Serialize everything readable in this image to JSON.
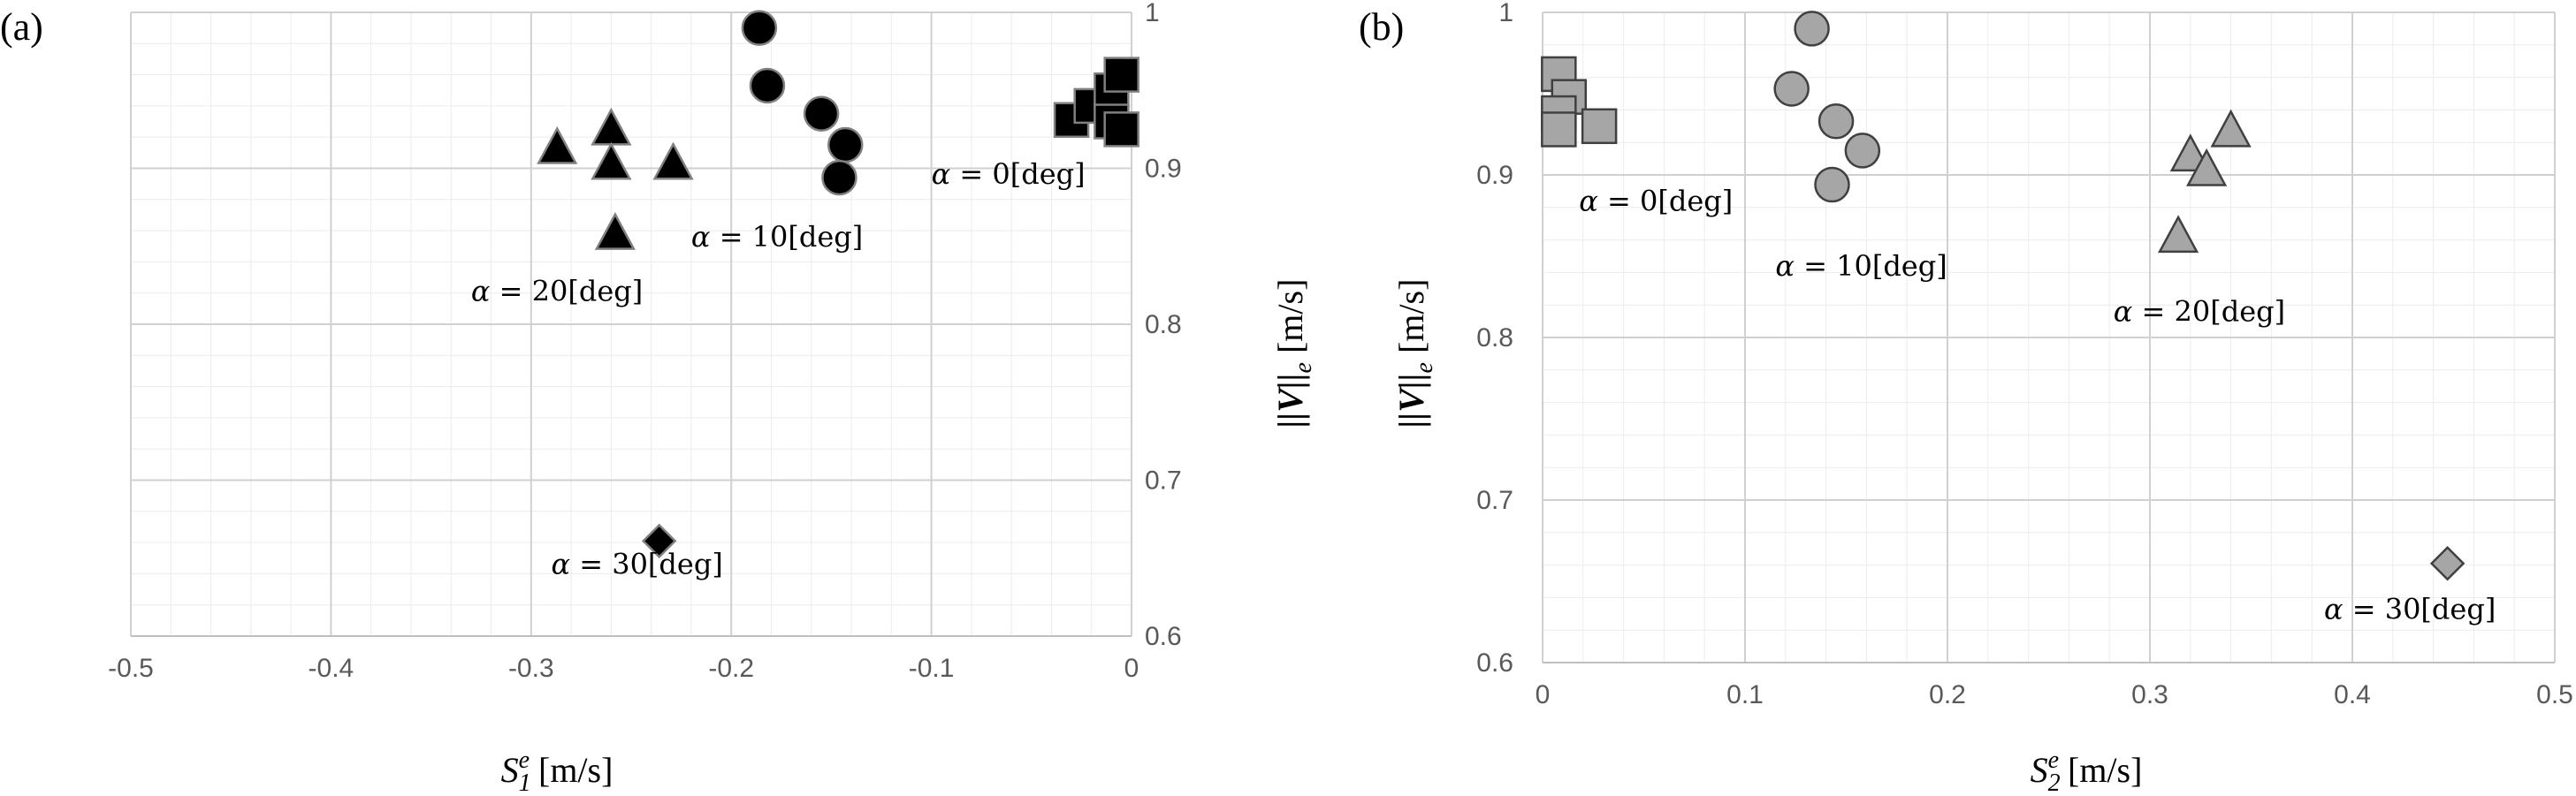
{
  "colors": {
    "background": "#ffffff",
    "grid_major": "#d0d0d0",
    "grid_minor": "#ececec",
    "tick_text": "#595959",
    "panel_a_fill": "#000000",
    "panel_a_stroke": "#808080",
    "panel_b_fill": "#a6a6a6",
    "panel_b_stroke": "#404040"
  },
  "chart_data": [
    {
      "type": "scatter",
      "panel_label": "(a)",
      "xlabel": {
        "main": "S",
        "sub": "1",
        "sup": "e",
        "unit": " [m/s]"
      },
      "ylabel": {
        "main": "||V||",
        "sub": "e",
        "unit": " [m/s]"
      },
      "xlim": [
        -0.5,
        0
      ],
      "ylim": [
        0.6,
        1
      ],
      "xticks": [
        "-0.5",
        "-0.4",
        "-0.3",
        "-0.2",
        "-0.1",
        "0"
      ],
      "yticks": [
        "0.6",
        "0.7",
        "0.8",
        "0.9",
        "1"
      ],
      "grid": true,
      "yaxis_side": "right",
      "series": [
        {
          "marker": "square",
          "points": [
            [
              -0.03,
              0.931
            ],
            [
              -0.02,
              0.94
            ],
            [
              -0.01,
              0.95
            ],
            [
              -0.005,
              0.96
            ],
            [
              -0.01,
              0.93
            ],
            [
              -0.005,
              0.925
            ]
          ]
        },
        {
          "marker": "circle",
          "points": [
            [
              -0.186,
              0.99
            ],
            [
              -0.182,
              0.953
            ],
            [
              -0.155,
              0.935
            ],
            [
              -0.143,
              0.915
            ],
            [
              -0.146,
              0.894
            ]
          ]
        },
        {
          "marker": "triangle",
          "points": [
            [
              -0.287,
              0.913
            ],
            [
              -0.26,
              0.925
            ],
            [
              -0.26,
              0.903
            ],
            [
              -0.229,
              0.903
            ],
            [
              -0.258,
              0.858
            ]
          ]
        },
        {
          "marker": "diamond",
          "points": [
            [
              -0.236,
              0.661
            ]
          ]
        }
      ],
      "annotations": [
        {
          "greek": "α",
          "text": " = 0[deg]",
          "x": -0.1,
          "y": 0.89
        },
        {
          "greek": "α",
          "text": " = 10[deg]",
          "x": -0.22,
          "y": 0.85
        },
        {
          "greek": "α",
          "text": " = 20[deg]",
          "x": -0.33,
          "y": 0.815
        },
        {
          "greek": "α",
          "text": " = 30[deg]",
          "x": -0.29,
          "y": 0.64
        }
      ]
    },
    {
      "type": "scatter",
      "panel_label": "(b)",
      "xlabel": {
        "main": "S",
        "sub": "2",
        "sup": "e",
        "unit": " [m/s]"
      },
      "ylabel": {
        "main": "||V||",
        "sub": "e",
        "unit": " [m/s]"
      },
      "xlim": [
        0,
        0.5
      ],
      "ylim": [
        0.6,
        1
      ],
      "xticks": [
        "0",
        "0.1",
        "0.2",
        "0.3",
        "0.4",
        "0.5"
      ],
      "yticks": [
        "0.6",
        "0.7",
        "0.8",
        "0.9",
        "1"
      ],
      "grid": true,
      "yaxis_side": "left",
      "series": [
        {
          "marker": "square",
          "points": [
            [
              0.008,
              0.962
            ],
            [
              0.013,
              0.948
            ],
            [
              0.008,
              0.938
            ],
            [
              0.028,
              0.93
            ],
            [
              0.008,
              0.928
            ]
          ]
        },
        {
          "marker": "circle",
          "points": [
            [
              0.133,
              0.99
            ],
            [
              0.123,
              0.953
            ],
            [
              0.145,
              0.933
            ],
            [
              0.158,
              0.915
            ],
            [
              0.143,
              0.894
            ]
          ]
        },
        {
          "marker": "triangle",
          "points": [
            [
              0.34,
              0.927
            ],
            [
              0.32,
              0.912
            ],
            [
              0.328,
              0.903
            ],
            [
              0.314,
              0.862
            ]
          ]
        },
        {
          "marker": "diamond",
          "points": [
            [
              0.447,
              0.661
            ]
          ]
        }
      ],
      "annotations": [
        {
          "greek": "α",
          "text": " = 0[deg]",
          "x": 0.018,
          "y": 0.878
        },
        {
          "greek": "α",
          "text": " = 10[deg]",
          "x": 0.115,
          "y": 0.838
        },
        {
          "greek": "α",
          "text": " = 20[deg]",
          "x": 0.282,
          "y": 0.81
        },
        {
          "greek": "α",
          "text": " = 30[deg]",
          "x": 0.386,
          "y": 0.627
        }
      ]
    }
  ]
}
